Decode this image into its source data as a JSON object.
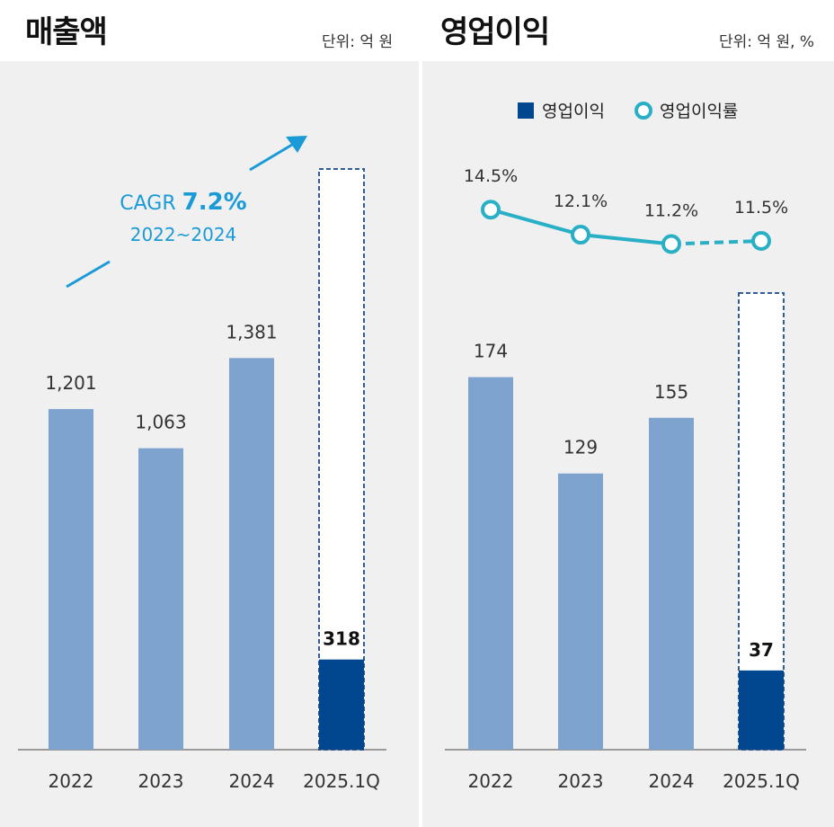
{
  "chart_data": [
    {
      "type": "bar",
      "title": "매출액",
      "unit_label": "단위: 억 원",
      "categories": [
        "2022",
        "2023",
        "2024",
        "2025.1Q"
      ],
      "values": [
        1201,
        1063,
        1381,
        318
      ],
      "value_labels": [
        "1,201",
        "1,063",
        "1,381",
        "318"
      ],
      "annotation": {
        "title": "CAGR",
        "value": "7.2%",
        "period": "2022~2024"
      },
      "ylim": [
        0,
        1600
      ],
      "colors": {
        "bar": "#7fa3cf",
        "highlight": "#00478f",
        "annotation": "#1a9ad6"
      }
    },
    {
      "type": "bar",
      "title": "영업이익",
      "unit_label": "단위: 억 원, %",
      "categories": [
        "2022",
        "2023",
        "2024",
        "2025.1Q"
      ],
      "series": [
        {
          "name": "영업이익",
          "values": [
            174,
            129,
            155,
            37
          ],
          "value_labels": [
            "174",
            "129",
            "155",
            "37"
          ]
        },
        {
          "name": "영업이익률",
          "values": [
            14.5,
            12.1,
            11.2,
            11.5
          ],
          "value_labels": [
            "14.5%",
            "12.1%",
            "11.2%",
            "11.5%"
          ]
        }
      ],
      "ylim": [
        0,
        220
      ],
      "colors": {
        "bar": "#7fa3cf",
        "highlight": "#00478f",
        "line": "#29afc6"
      }
    }
  ]
}
